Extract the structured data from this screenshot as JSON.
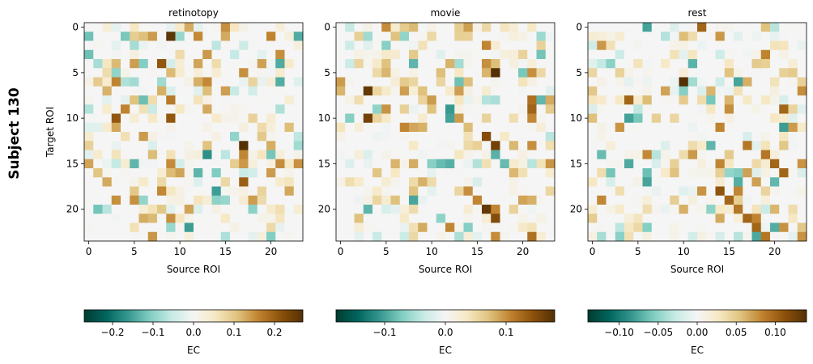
{
  "figure": {
    "row_label": "Subject 130"
  },
  "chart_data": [
    {
      "type": "heatmap",
      "title": "retinotopy",
      "xlabel": "Source ROI",
      "ylabel": "Target ROI",
      "n_rois": 24,
      "x_ticks": [
        0,
        5,
        10,
        15,
        20
      ],
      "y_ticks": [
        0,
        5,
        10,
        15,
        20
      ],
      "colormap": "BrBG_r",
      "colorbar": {
        "label": "EC",
        "vmin": -0.27,
        "vmax": 0.27,
        "ticks": [
          -0.2,
          -0.1,
          0.0,
          0.1,
          0.2
        ],
        "tick_labels": [
          "−0.2",
          "−0.1",
          "0.0",
          "0.1",
          "0.2"
        ]
      },
      "seed": 130,
      "highlights": [
        [
          1,
          9,
          0.26
        ],
        [
          4,
          8,
          0.21
        ],
        [
          13,
          17,
          0.27
        ],
        [
          10,
          3,
          0.21
        ],
        [
          10,
          9,
          0.21
        ],
        [
          6,
          3,
          0.16
        ],
        [
          8,
          9,
          0.17
        ],
        [
          17,
          17,
          0.2
        ],
        [
          14,
          13,
          -0.17
        ],
        [
          6,
          21,
          -0.14
        ],
        [
          5,
          17,
          0.15
        ],
        [
          16,
          20,
          0.14
        ],
        [
          18,
          22,
          0.13
        ]
      ]
    },
    {
      "type": "heatmap",
      "title": "movie",
      "xlabel": "Source ROI",
      "ylabel": "",
      "n_rois": 24,
      "x_ticks": [
        0,
        5,
        10,
        15,
        20
      ],
      "y_ticks": [
        0,
        5,
        10,
        15,
        20
      ],
      "colormap": "BrBG_r",
      "colorbar": {
        "label": "EC",
        "vmin": -0.18,
        "vmax": 0.18,
        "ticks": [
          -0.1,
          0.0,
          0.1
        ],
        "tick_labels": [
          "−0.1",
          "0.0",
          "0.1"
        ]
      },
      "seed": 7,
      "highlights": [
        [
          5,
          17,
          0.18
        ],
        [
          7,
          3,
          0.17
        ],
        [
          10,
          3,
          0.16
        ],
        [
          12,
          16,
          0.15
        ],
        [
          13,
          17,
          0.16
        ],
        [
          20,
          16,
          0.17
        ],
        [
          21,
          17,
          0.15
        ],
        [
          9,
          21,
          0.13
        ],
        [
          8,
          21,
          0.12
        ],
        [
          18,
          14,
          0.1
        ],
        [
          4,
          16,
          0.1
        ],
        [
          23,
          21,
          0.12
        ],
        [
          6,
          13,
          -0.08
        ]
      ]
    },
    {
      "type": "heatmap",
      "title": "rest",
      "xlabel": "Source ROI",
      "ylabel": "",
      "n_rois": 24,
      "x_ticks": [
        0,
        5,
        10,
        15,
        20
      ],
      "y_ticks": [
        0,
        5,
        10,
        15,
        20
      ],
      "colormap": "BrBG_r",
      "colorbar": {
        "label": "EC",
        "vmin": -0.14,
        "vmax": 0.14,
        "ticks": [
          -0.1,
          -0.05,
          0.0,
          0.05,
          0.1
        ],
        "tick_labels": [
          "−0.10",
          "−0.05",
          "0.00",
          "0.05",
          "0.10"
        ]
      },
      "seed": 31,
      "highlights": [
        [
          6,
          10,
          0.14
        ],
        [
          0,
          12,
          0.1
        ],
        [
          8,
          4,
          0.1
        ],
        [
          9,
          21,
          0.1
        ],
        [
          13,
          17,
          0.09
        ],
        [
          15,
          20,
          0.1
        ],
        [
          16,
          21,
          0.1
        ],
        [
          18,
          14,
          0.11
        ],
        [
          19,
          15,
          0.1
        ],
        [
          20,
          16,
          0.09
        ],
        [
          21,
          17,
          0.1
        ],
        [
          22,
          18,
          0.1
        ],
        [
          23,
          19,
          0.09
        ],
        [
          14,
          19,
          0.09
        ],
        [
          7,
          8,
          0.07
        ]
      ]
    }
  ]
}
